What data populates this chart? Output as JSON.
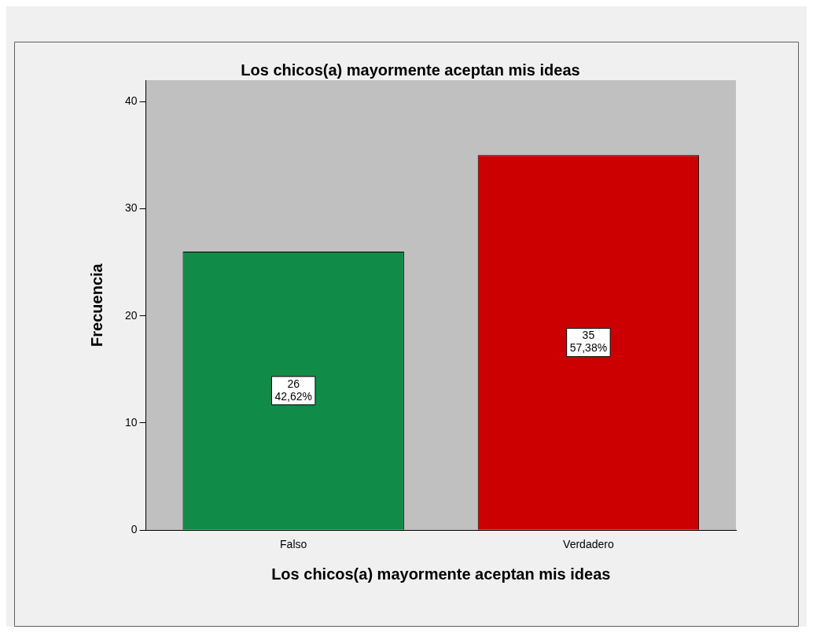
{
  "chart_data": {
    "type": "bar",
    "title": "Los chicos(a) mayormente aceptan mis ideas",
    "xlabel": "Los chicos(a) mayormente aceptan mis ideas",
    "ylabel": "Frecuencia",
    "categories": [
      "Falso",
      "Verdadero"
    ],
    "values": [
      26,
      35
    ],
    "colors": [
      "#108c48",
      "#cc0000"
    ],
    "value_labels": [
      "26\n42,62%",
      "35\n57,38%"
    ],
    "ylim": [
      0,
      42
    ],
    "yticks": [
      0,
      10,
      20,
      30,
      40
    ],
    "grid": false,
    "legend": false
  }
}
